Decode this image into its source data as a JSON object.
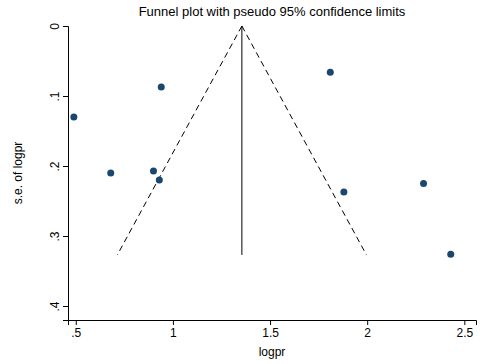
{
  "chart_data": {
    "type": "scatter",
    "title": "Funnel plot with pseudo 95% confidence limits",
    "x_label": "logpr",
    "y_label": "s.e. of logpr",
    "x": [
      0.49,
      0.68,
      0.9,
      0.93,
      0.94,
      1.81,
      1.88,
      2.29,
      2.43
    ],
    "values": [
      0.13,
      0.21,
      0.207,
      0.22,
      0.087,
      0.066,
      0.237,
      0.225,
      0.326
    ],
    "color": "#1a476f",
    "marker": "circle",
    "lines": [
      {
        "x": [
          1.355,
          1.355
        ],
        "y": [
          0,
          0.327
        ],
        "line_style": "solid",
        "color": "#000000"
      },
      {
        "x": [
          1.355,
          0.714
        ],
        "y": [
          0,
          0.327
        ],
        "line_style": "dashed",
        "color": "#000000"
      },
      {
        "x": [
          1.355,
          1.996
        ],
        "y": [
          0,
          0.327
        ],
        "line_style": "dashed",
        "color": "#000000"
      }
    ],
    "xlim": [
      0.46,
      2.56
    ],
    "ylim": [
      0,
      0.42
    ],
    "xticks": [
      {
        "value": 0.5,
        "label": ".5"
      },
      1,
      1.5,
      2,
      2.5
    ],
    "yticks": [
      0,
      {
        "value": 0.1,
        "label": ".1"
      },
      {
        "value": 0.2,
        "label": ".2"
      },
      {
        "value": 0.3,
        "label": ".3"
      },
      {
        "value": 0.4,
        "label": ".4"
      }
    ],
    "grid": false
  }
}
